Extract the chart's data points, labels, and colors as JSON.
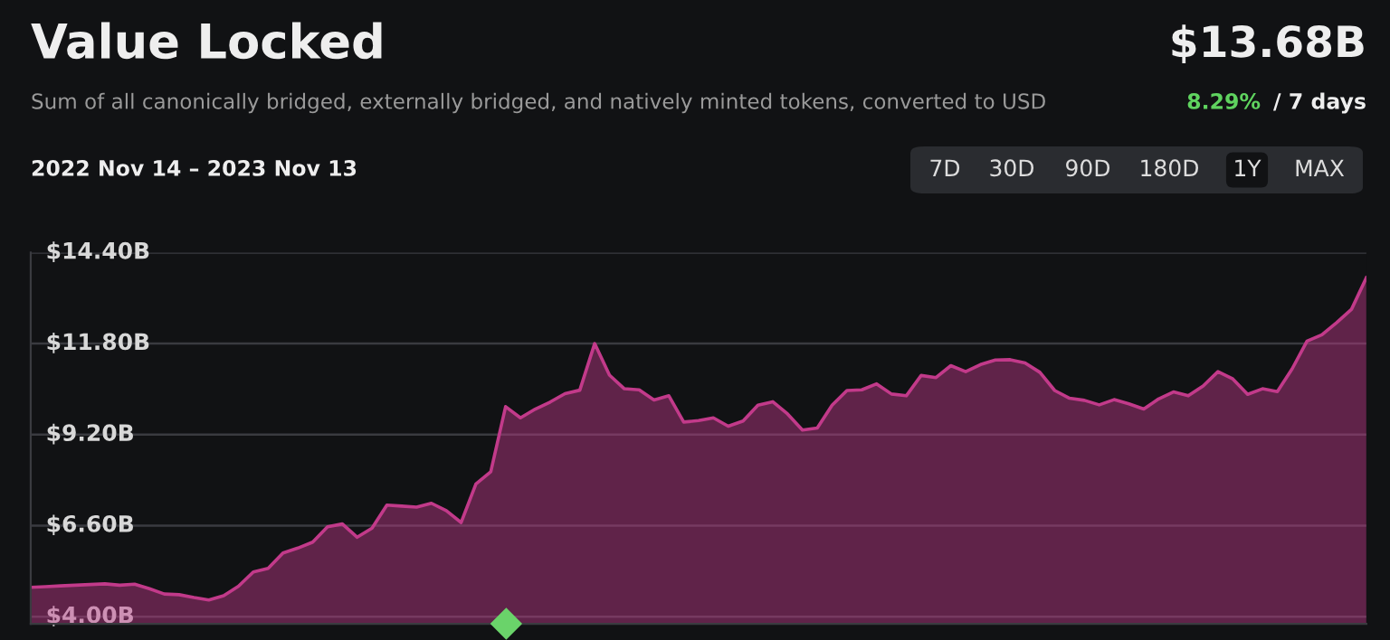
{
  "chart_data": {
    "type": "area",
    "title": "Value Locked",
    "subtitle": "Sum of all canonically bridged, externally bridged, and natively minted tokens, converted to USD",
    "annotations": [
      "$13.68B",
      "8.29%",
      "/ 7 days",
      "2022 Nov 14 – 2023 Nov 13",
      "7D",
      "30D",
      "90D",
      "180D",
      "1Y",
      "MAX"
    ],
    "categories": [
      null,
      null,
      null,
      null,
      null,
      null,
      null,
      null,
      null,
      null,
      null,
      null,
      null,
      null,
      null,
      null,
      null,
      null,
      null,
      null,
      null,
      null,
      null,
      null,
      null,
      null,
      null,
      null,
      null,
      null,
      null,
      null,
      null,
      null,
      null,
      null,
      null,
      null,
      null,
      null,
      null,
      null,
      null,
      null,
      null,
      null,
      null,
      null,
      null,
      null,
      null,
      null,
      null,
      null,
      null,
      null,
      null,
      null,
      null,
      null,
      null,
      null,
      null,
      null,
      null,
      null,
      null,
      null,
      null,
      null,
      null,
      null,
      null,
      null,
      null,
      null,
      null,
      null,
      null,
      null,
      null,
      null,
      null,
      null,
      null,
      null,
      null,
      null,
      null,
      null,
      null
    ],
    "series": [
      {
        "color": "#c23a8a",
        "values": [
          4.84,
          4.86,
          4.88,
          4.9,
          4.92,
          4.94,
          4.9,
          4.93,
          4.8,
          4.65,
          4.63,
          4.55,
          4.48,
          4.6,
          4.87,
          5.28,
          5.38,
          5.82,
          5.96,
          6.13,
          6.57,
          6.65,
          6.27,
          6.53,
          7.19,
          7.16,
          7.13,
          7.24,
          7.03,
          6.69,
          7.79,
          8.14,
          10.0,
          9.68,
          9.93,
          10.13,
          10.37,
          10.47,
          11.8,
          10.9,
          10.51,
          10.48,
          10.19,
          10.31,
          9.56,
          9.6,
          9.68,
          9.44,
          9.59,
          10.04,
          10.14,
          9.79,
          9.33,
          9.39,
          10.04,
          10.46,
          10.48,
          10.65,
          10.36,
          10.31,
          10.89,
          10.83,
          11.17,
          11.0,
          11.2,
          11.33,
          11.34,
          11.25,
          10.98,
          10.46,
          10.24,
          10.18,
          10.05,
          10.2,
          10.08,
          9.93,
          10.22,
          10.42,
          10.31,
          10.59,
          11.0,
          10.79,
          10.35,
          10.51,
          10.43,
          11.08,
          11.87,
          12.05,
          12.4,
          12.78,
          13.68
        ]
      }
    ],
    "ylim": [
      3.8,
      14.4
    ],
    "yticks": [
      {
        "value": 4.0,
        "label": "$4.00B"
      },
      {
        "value": 6.6,
        "label": "$6.60B"
      },
      {
        "value": 9.2,
        "label": "$9.20B"
      },
      {
        "value": 11.8,
        "label": "$11.80B"
      },
      {
        "value": 14.4,
        "label": "$14.40B"
      }
    ],
    "grid": "y",
    "tick_labels": "y",
    "legend": false
  }
}
